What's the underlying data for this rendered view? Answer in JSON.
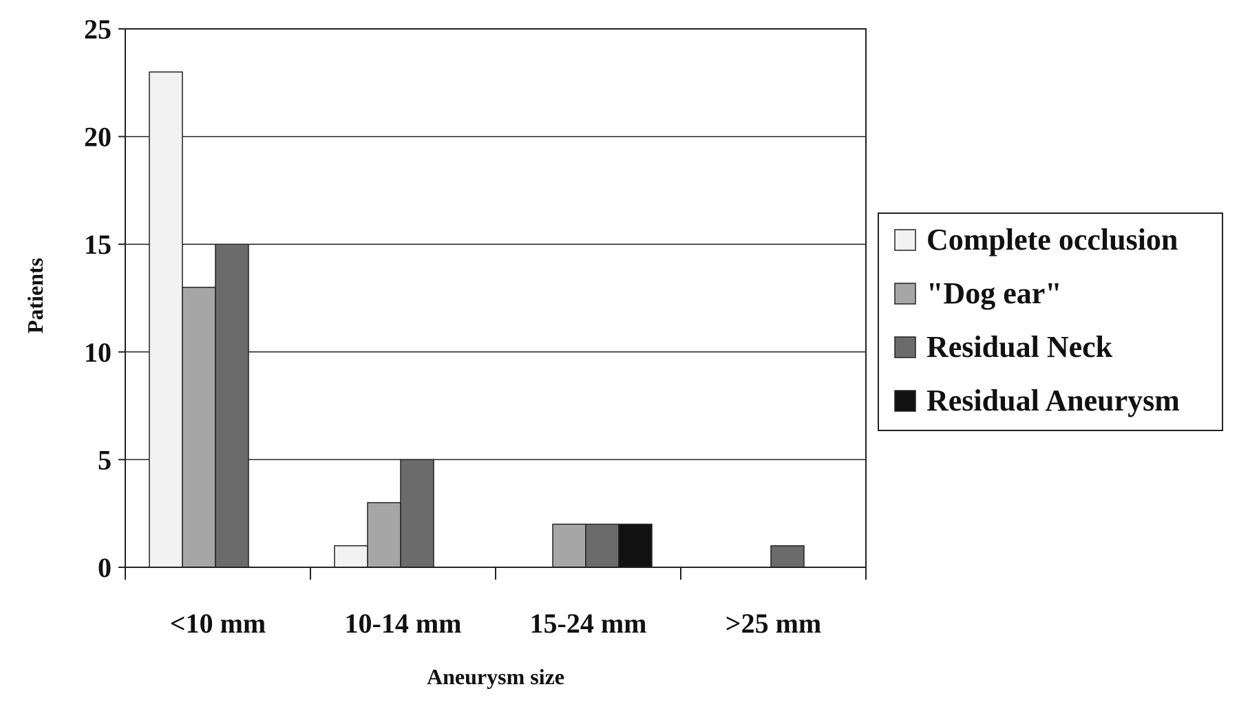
{
  "chart_data": {
    "type": "bar",
    "title": "",
    "xlabel": "Aneurysm size",
    "ylabel": "Patients",
    "categories": [
      "<10 mm",
      "10-14 mm",
      "15-24 mm",
      ">25 mm"
    ],
    "ylim": [
      0,
      25
    ],
    "yticks": [
      "0",
      "5",
      "10",
      "15",
      "20",
      "25"
    ],
    "grid": true,
    "legend_position": "right",
    "series": [
      {
        "name": "Complete occlusion",
        "color": "#f2f2f2",
        "values": [
          23,
          1,
          0,
          0
        ]
      },
      {
        "name": "\"Dog ear\"",
        "color": "#a6a6a6",
        "values": [
          13,
          3,
          2,
          0
        ]
      },
      {
        "name": "Residual Neck",
        "color": "#6b6b6b",
        "values": [
          15,
          5,
          2,
          1
        ]
      },
      {
        "name": "Residual Aneurysm",
        "color": "#111111",
        "values": [
          0,
          0,
          2,
          0
        ]
      }
    ]
  }
}
